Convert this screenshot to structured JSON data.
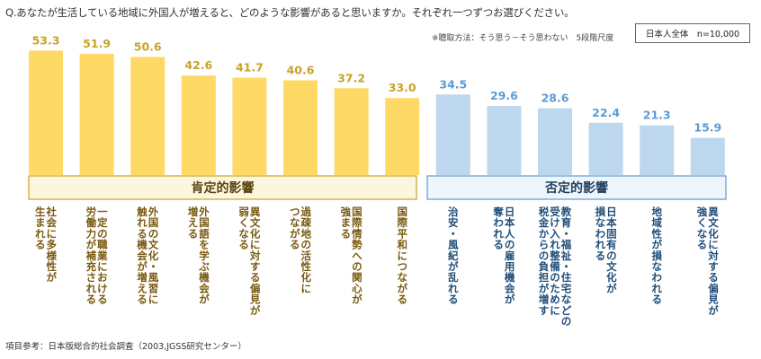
{
  "header": {
    "question": "Q.あなたが生活している地域に外国人が増えると、どのような影響があると思いますか。それぞれ一つずつお選びください。",
    "method": "※聴取方法：そう思う－そう思わない　5段階尺度",
    "sample": "日本人全体　n=10,000"
  },
  "footer": {
    "source": "項目参考：日本版総合的社会調査（2003,JGSS研究センター）"
  },
  "chart_data": {
    "type": "bar",
    "groups": [
      {
        "label": "肯定的影響",
        "color": "#FFD966",
        "count": 8
      },
      {
        "label": "否定的影響",
        "color": "#BDD7EE",
        "count": 6
      }
    ],
    "categories": [
      "社会に多様性が生まれる",
      "一定の職業における労働力が補充される",
      "外国の文化・風習に触れる機会が増える",
      "外国語を学ぶ機会が増える",
      "異文化に対する偏見が弱くなる",
      "過疎地の活性化につながる",
      "国際情勢への関心が強まる",
      "国際平和につながる",
      "治安・風紀が乱れる",
      "日本人の雇用機会が奪われる",
      "教育・福祉・住宅などの受け入れ整備のために税金からの負担が増す",
      "日本固有の文化が損なわれる",
      "地域性が損なわれる",
      "異文化に対する偏見が強くなる"
    ],
    "label_lines": [
      [
        "社会に多様性が",
        "生まれる"
      ],
      [
        "一定の職業における",
        "労働力が補充される"
      ],
      [
        "外国の文化・風習に",
        "触れる機会が増える"
      ],
      [
        "外国語を学ぶ機会が",
        "増える"
      ],
      [
        "異文化に対する偏見が",
        "弱くなる"
      ],
      [
        "過疎地の活性化に",
        "つながる"
      ],
      [
        "国際情勢への関心が",
        "強まる"
      ],
      [
        "国際平和につながる"
      ],
      [
        "治安・風紀が乱れる"
      ],
      [
        "日本人の雇用機会が",
        "奪われる"
      ],
      [
        "教育・福祉・住宅などの",
        "受け入れ整備のために",
        "税金からの負担が増す"
      ],
      [
        "日本固有の文化が",
        "損なわれる"
      ],
      [
        "地域性が損なわれる"
      ],
      [
        "異文化に対する偏見が",
        "強くなる"
      ]
    ],
    "values": [
      53.3,
      51.9,
      50.6,
      42.6,
      41.7,
      40.6,
      37.2,
      33.0,
      34.5,
      29.6,
      28.6,
      22.4,
      21.3,
      15.9
    ],
    "value_labels": [
      "53.3",
      "51.9",
      "50.6",
      "42.6",
      "41.7",
      "40.6",
      "37.2",
      "33.0",
      "34.5",
      "29.6",
      "28.6",
      "22.4",
      "21.3",
      "15.9"
    ],
    "colors": {
      "positive_value": "#C9A227",
      "negative_value": "#5B9BD5",
      "positive_label": "#7A5A10",
      "negative_label": "#1F4E79",
      "group_border_positive": "#C9A227",
      "group_border_negative": "#5B9BD5"
    },
    "ylim": [
      0,
      60
    ],
    "grid": false,
    "legend": "none"
  }
}
